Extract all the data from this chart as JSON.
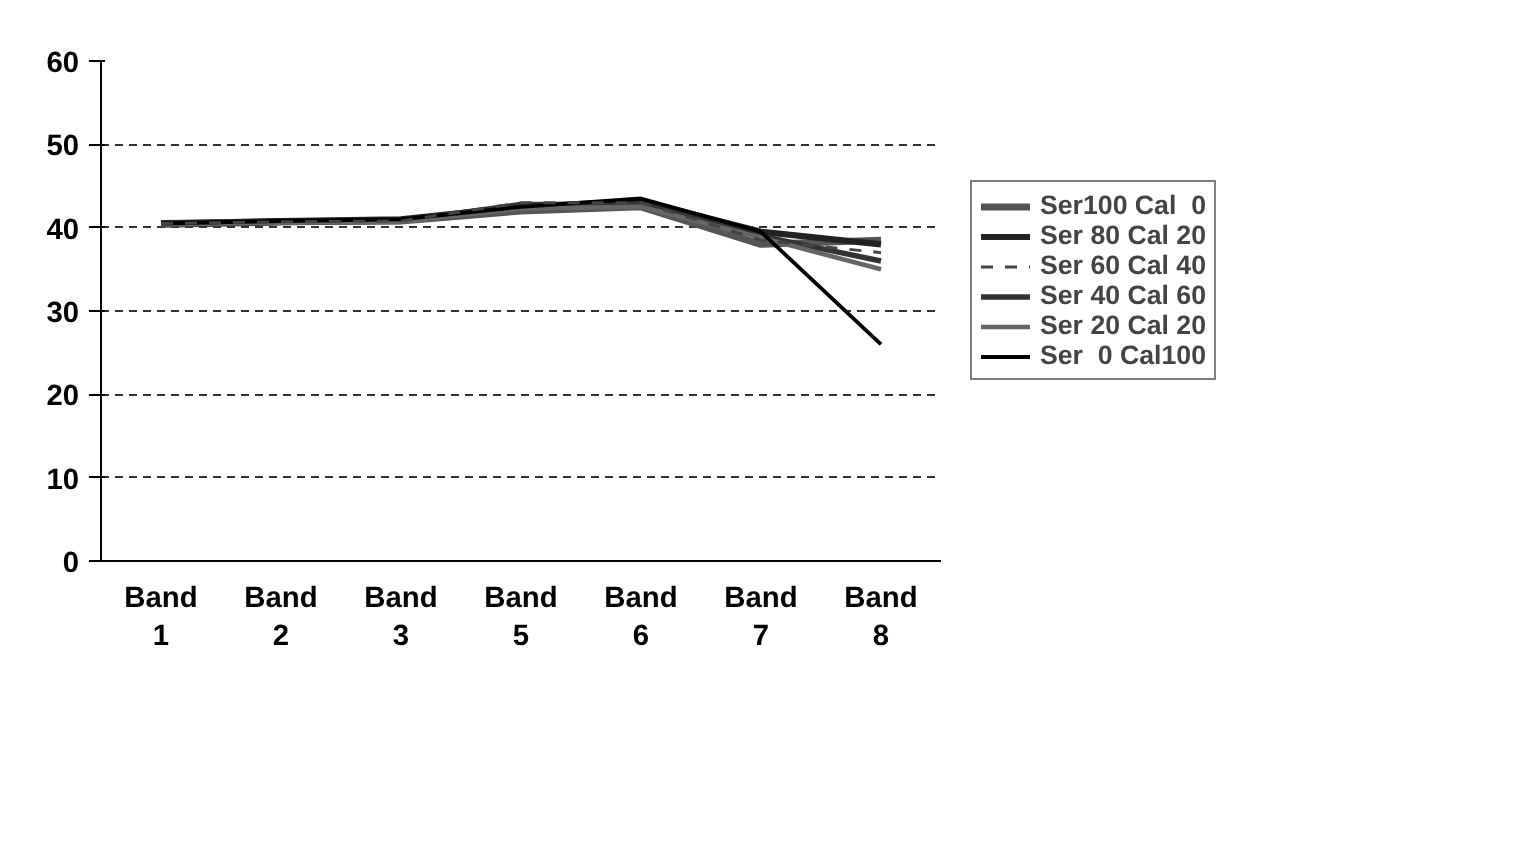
{
  "chart_data": {
    "type": "line",
    "categories": [
      "Band\n1",
      "Band\n2",
      "Band\n3",
      "Band\n5",
      "Band\n6",
      "Band\n7",
      "Band\n8"
    ],
    "series": [
      {
        "name": "Ser100 Cal  0",
        "color": "#555555",
        "values": [
          40.5,
          40.7,
          40.8,
          42,
          42.5,
          38,
          38.5
        ]
      },
      {
        "name": "Ser 80 Cal 20",
        "color": "#222222",
        "values": [
          40.5,
          40.8,
          41,
          42.5,
          43.2,
          39.5,
          38
        ]
      },
      {
        "name": "Ser 60 Cal 40",
        "color": "#444444",
        "line_style": "dashed",
        "values": [
          40.5,
          40.7,
          40.8,
          43,
          43,
          38.5,
          37
        ]
      },
      {
        "name": "Ser 40 Cal 60",
        "color": "#333333",
        "values": [
          40.3,
          40.6,
          40.8,
          42.8,
          42.8,
          39,
          36
        ]
      },
      {
        "name": "Ser 20 Cal 20",
        "color": "#666666",
        "values": [
          40.4,
          40.6,
          40.7,
          42.3,
          42.5,
          38.8,
          35
        ]
      },
      {
        "name": "Ser  0 Cal100",
        "color": "#000000",
        "values": [
          40.5,
          40.8,
          41,
          42.5,
          43.5,
          39.5,
          26
        ]
      }
    ],
    "ylim": [
      0,
      60
    ],
    "yticks": [
      0,
      10,
      20,
      30,
      40,
      50,
      60
    ],
    "grid": "y",
    "legend": "right",
    "marker": "none",
    "line_style": "solid"
  }
}
